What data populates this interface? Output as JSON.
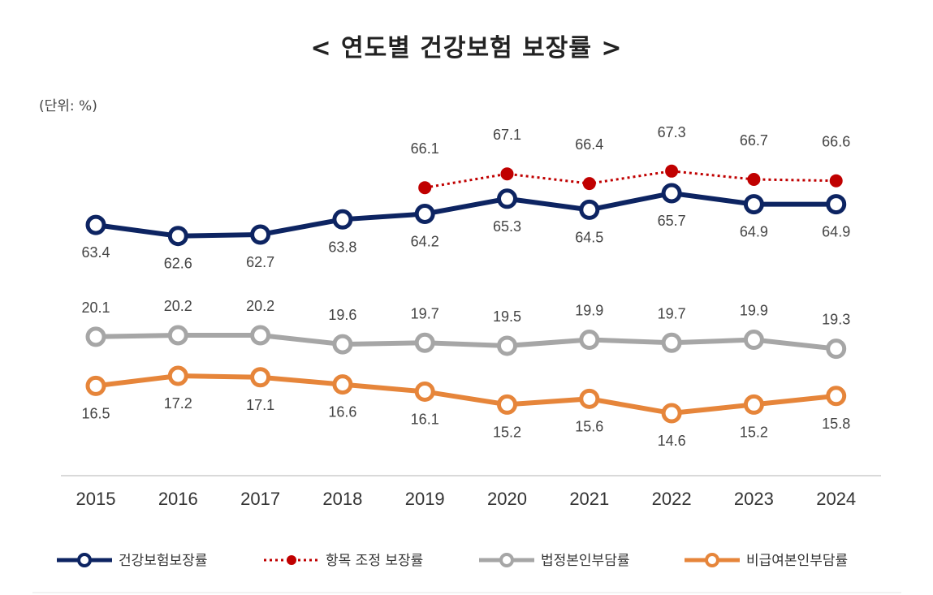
{
  "chart_data": {
    "type": "line",
    "title": "< 연도별 건강보험 보장률 >",
    "unit_label": "(단위: %)",
    "categories": [
      "2015",
      "2016",
      "2017",
      "2018",
      "2019",
      "2020",
      "2021",
      "2022",
      "2023",
      "2024"
    ],
    "grid": false,
    "y_axis": "broken, hidden",
    "legend_position": "bottom",
    "series": [
      {
        "name": "건강보험보장률",
        "color": "#0d2462",
        "style": "solid-hollow-marker",
        "labels": "below",
        "values": [
          63.4,
          62.6,
          62.7,
          63.8,
          64.2,
          65.3,
          64.5,
          65.7,
          64.9,
          64.9
        ]
      },
      {
        "name": "항목 조정 보장률",
        "color": "#c00000",
        "style": "dotted-filled-marker",
        "labels": "above",
        "values": [
          null,
          null,
          null,
          null,
          66.1,
          67.1,
          66.4,
          67.3,
          66.7,
          66.6
        ]
      },
      {
        "name": "법정본인부담률",
        "color": "#a6a6a6",
        "style": "solid-hollow-marker",
        "labels": "above",
        "values": [
          20.1,
          20.2,
          20.2,
          19.6,
          19.7,
          19.5,
          19.9,
          19.7,
          19.9,
          19.3
        ]
      },
      {
        "name": "비급여본인부담률",
        "color": "#e6853a",
        "style": "solid-hollow-marker",
        "labels": "below",
        "values": [
          16.5,
          17.2,
          17.1,
          16.6,
          16.1,
          15.2,
          15.6,
          14.6,
          15.2,
          15.8
        ]
      }
    ]
  }
}
